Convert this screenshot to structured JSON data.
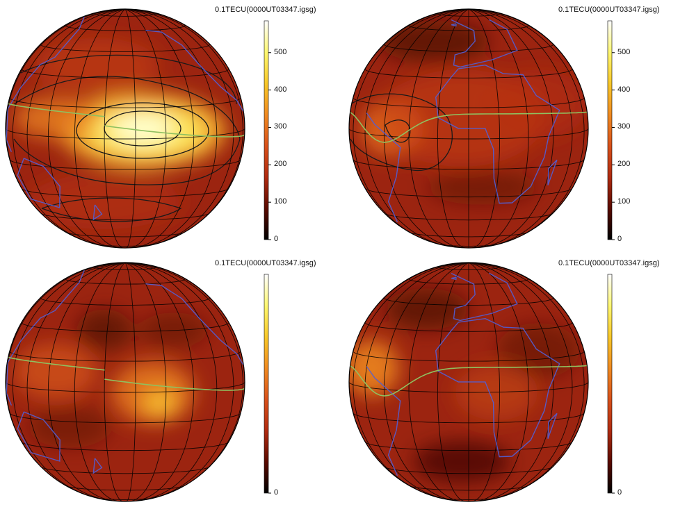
{
  "colorbar_label": "0.1TECU(0000UT03347.igsg)",
  "colorscale": [
    "#000000",
    "#5a0a00",
    "#b02a10",
    "#d8501a",
    "#f08a20",
    "#f8c828",
    "#fff870",
    "#ffffff"
  ],
  "colors": {
    "coastline": "#5060d8",
    "graticule": "#000000",
    "contour": "#1a1a1a",
    "dip_equator": "#8fc060"
  },
  "panels": [
    {
      "id": "top-left",
      "view": "Pacific",
      "ticks": [
        "500",
        "400",
        "300",
        "200",
        "100",
        "0"
      ],
      "tick_values": [
        500,
        400,
        300,
        200,
        100,
        0
      ],
      "scale_max": 585,
      "contours": true
    },
    {
      "id": "top-right",
      "view": "Africa-Atlantic",
      "ticks": [
        "500",
        "400",
        "300",
        "200",
        "100",
        "0"
      ],
      "tick_values": [
        500,
        400,
        300,
        200,
        100,
        0
      ],
      "scale_max": 585,
      "contours": true
    },
    {
      "id": "bottom-left",
      "view": "Pacific",
      "ticks": [
        "0"
      ],
      "tick_values": [
        0
      ],
      "scale_max": 585,
      "contours": false
    },
    {
      "id": "bottom-right",
      "view": "Africa-Atlantic",
      "ticks": [
        "0"
      ],
      "tick_values": [
        0
      ],
      "scale_max": 585,
      "contours": false
    }
  ]
}
